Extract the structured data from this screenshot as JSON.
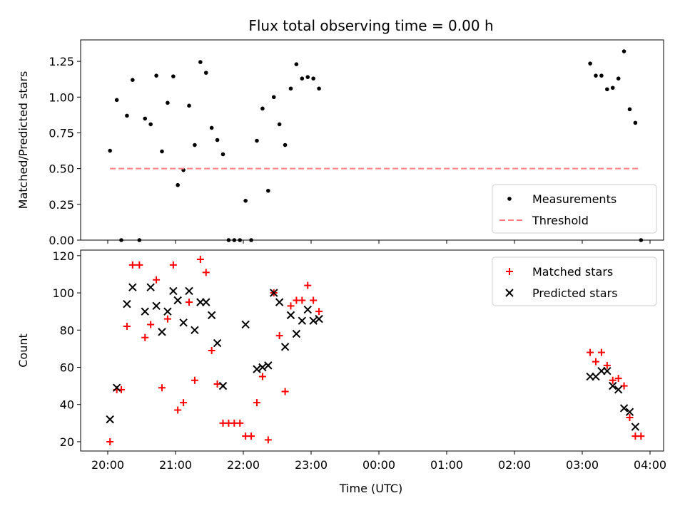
{
  "figure": {
    "title": "Flux total observing time = 0.00 h",
    "xlabel": "Time (UTC)"
  },
  "colors": {
    "measurements": "#000000",
    "threshold": "#ff8080",
    "matched": "#ff0000",
    "predicted": "#000000"
  },
  "chart_data": [
    {
      "type": "scatter",
      "ylabel": "Matched/Predicted stars",
      "xlim": [
        "19:36",
        "04:12"
      ],
      "ylim": [
        0,
        1.4
      ],
      "yticks": [
        "0.00",
        "0.25",
        "0.50",
        "0.75",
        "1.00",
        "1.25"
      ],
      "xticks": [
        "20:00",
        "21:00",
        "22:00",
        "23:00",
        "00:00",
        "01:00",
        "02:00",
        "03:00",
        "04:00"
      ],
      "legend_position": "lower-right",
      "series": [
        {
          "name": "Measurements",
          "marker": "dot",
          "points": [
            [
              "20:02",
              0.625
            ],
            [
              "20:08",
              0.98
            ],
            [
              "20:12",
              0.0
            ],
            [
              "20:17",
              0.87
            ],
            [
              "20:22",
              1.12
            ],
            [
              "20:28",
              0.0
            ],
            [
              "20:33",
              0.85
            ],
            [
              "20:38",
              0.81
            ],
            [
              "20:43",
              1.15
            ],
            [
              "20:48",
              0.62
            ],
            [
              "20:53",
              0.96
            ],
            [
              "20:58",
              1.145
            ],
            [
              "21:02",
              0.385
            ],
            [
              "21:07",
              0.49
            ],
            [
              "21:12",
              0.94
            ],
            [
              "21:17",
              0.665
            ],
            [
              "21:22",
              1.245
            ],
            [
              "21:27",
              1.17
            ],
            [
              "21:32",
              0.785
            ],
            [
              "21:37",
              0.7
            ],
            [
              "21:42",
              0.6
            ],
            [
              "21:47",
              0.0
            ],
            [
              "21:52",
              0.0
            ],
            [
              "21:57",
              0.0
            ],
            [
              "22:02",
              0.275
            ],
            [
              "22:07",
              0.0
            ],
            [
              "22:12",
              0.695
            ],
            [
              "22:17",
              0.92
            ],
            [
              "22:22",
              0.345
            ],
            [
              "22:27",
              1.0
            ],
            [
              "22:32",
              0.81
            ],
            [
              "22:37",
              0.665
            ],
            [
              "22:42",
              1.06
            ],
            [
              "22:47",
              1.23
            ],
            [
              "22:52",
              1.13
            ],
            [
              "22:57",
              1.14
            ],
            [
              "23:02",
              1.13
            ],
            [
              "23:07",
              1.06
            ],
            [
              "03:07",
              1.235
            ],
            [
              "03:12",
              1.15
            ],
            [
              "03:17",
              1.15
            ],
            [
              "03:22",
              1.055
            ],
            [
              "03:27",
              1.065
            ],
            [
              "03:32",
              1.13
            ],
            [
              "03:37",
              1.32
            ],
            [
              "03:42",
              0.915
            ],
            [
              "03:47",
              0.82
            ],
            [
              "03:52",
              0.0
            ]
          ]
        },
        {
          "name": "Threshold",
          "marker": "dashed-line",
          "points": [
            [
              "20:02",
              0.5
            ],
            [
              "03:52",
              0.5
            ]
          ]
        }
      ]
    },
    {
      "type": "scatter",
      "ylabel": "Count",
      "xlim": [
        "19:36",
        "04:12"
      ],
      "ylim": [
        15,
        123
      ],
      "yticks": [
        "20",
        "40",
        "60",
        "80",
        "100",
        "120"
      ],
      "xticks": [
        "20:00",
        "21:00",
        "22:00",
        "23:00",
        "00:00",
        "01:00",
        "02:00",
        "03:00",
        "04:00"
      ],
      "legend_position": "upper-right",
      "series": [
        {
          "name": "Matched stars",
          "marker": "plus",
          "points": [
            [
              "20:02",
              20
            ],
            [
              "20:08",
              48
            ],
            [
              "20:12",
              48
            ],
            [
              "20:17",
              82
            ],
            [
              "20:22",
              115
            ],
            [
              "20:28",
              115
            ],
            [
              "20:33",
              76
            ],
            [
              "20:38",
              83
            ],
            [
              "20:43",
              107
            ],
            [
              "20:48",
              49
            ],
            [
              "20:53",
              86
            ],
            [
              "20:58",
              115
            ],
            [
              "21:02",
              37
            ],
            [
              "21:07",
              41
            ],
            [
              "21:12",
              95
            ],
            [
              "21:17",
              53
            ],
            [
              "21:22",
              118
            ],
            [
              "21:27",
              111
            ],
            [
              "21:32",
              69
            ],
            [
              "21:37",
              51
            ],
            [
              "21:42",
              30
            ],
            [
              "21:47",
              30
            ],
            [
              "21:52",
              30
            ],
            [
              "21:57",
              30
            ],
            [
              "22:02",
              23
            ],
            [
              "22:07",
              23
            ],
            [
              "22:12",
              41
            ],
            [
              "22:17",
              55
            ],
            [
              "22:22",
              21
            ],
            [
              "22:27",
              100
            ],
            [
              "22:32",
              77
            ],
            [
              "22:37",
              47
            ],
            [
              "22:42",
              93
            ],
            [
              "22:47",
              96
            ],
            [
              "22:52",
              96
            ],
            [
              "22:57",
              104
            ],
            [
              "23:02",
              96
            ],
            [
              "23:07",
              90
            ],
            [
              "03:07",
              68
            ],
            [
              "03:12",
              63
            ],
            [
              "03:17",
              68
            ],
            [
              "03:22",
              61
            ],
            [
              "03:27",
              53
            ],
            [
              "03:32",
              54
            ],
            [
              "03:37",
              50
            ],
            [
              "03:42",
              33
            ],
            [
              "03:47",
              23
            ],
            [
              "03:52",
              23
            ]
          ]
        },
        {
          "name": "Predicted stars",
          "marker": "x",
          "points": [
            [
              "20:02",
              32
            ],
            [
              "20:08",
              49
            ],
            [
              "20:17",
              94
            ],
            [
              "20:22",
              103
            ],
            [
              "20:33",
              90
            ],
            [
              "20:38",
              103
            ],
            [
              "20:43",
              93
            ],
            [
              "20:48",
              79
            ],
            [
              "20:53",
              90
            ],
            [
              "20:58",
              101
            ],
            [
              "21:02",
              96
            ],
            [
              "21:07",
              84
            ],
            [
              "21:12",
              101
            ],
            [
              "21:17",
              80
            ],
            [
              "21:22",
              95
            ],
            [
              "21:27",
              95
            ],
            [
              "21:32",
              88
            ],
            [
              "21:37",
              73
            ],
            [
              "21:42",
              50
            ],
            [
              "22:02",
              83
            ],
            [
              "22:12",
              59
            ],
            [
              "22:17",
              60
            ],
            [
              "22:22",
              61
            ],
            [
              "22:27",
              100
            ],
            [
              "22:32",
              95
            ],
            [
              "22:37",
              71
            ],
            [
              "22:42",
              88
            ],
            [
              "22:47",
              78
            ],
            [
              "22:52",
              85
            ],
            [
              "22:57",
              91
            ],
            [
              "23:02",
              85
            ],
            [
              "23:07",
              86
            ],
            [
              "03:07",
              55
            ],
            [
              "03:12",
              55
            ],
            [
              "03:17",
              58
            ],
            [
              "03:22",
              58
            ],
            [
              "03:27",
              50
            ],
            [
              "03:32",
              48
            ],
            [
              "03:37",
              38
            ],
            [
              "03:42",
              36
            ],
            [
              "03:47",
              28
            ]
          ]
        }
      ]
    }
  ]
}
